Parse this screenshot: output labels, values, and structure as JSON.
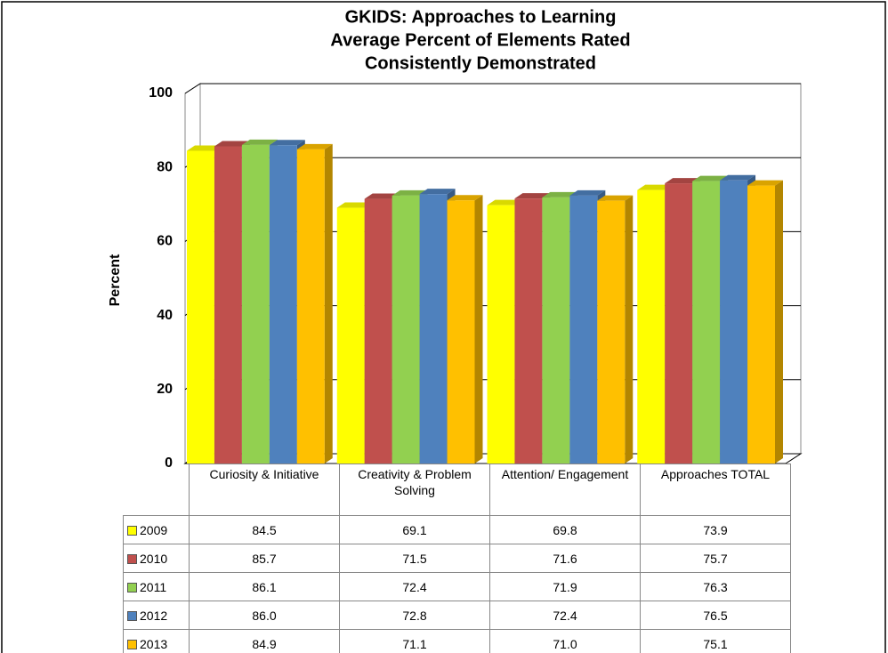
{
  "chart_data": {
    "type": "bar3d",
    "title": [
      "GKIDS:  Approaches to Learning",
      "Average Percent of Elements Rated",
      "Consistently Demonstrated"
    ],
    "y_label": "Percent",
    "categories": [
      "Curiosity & Initiative",
      "Creativity & Problem Solving",
      "Attention/ Engagement",
      "Approaches TOTAL"
    ],
    "series": [
      {
        "name": "2009",
        "color": "#FFFF00",
        "values": [
          84.5,
          69.1,
          69.8,
          73.9
        ],
        "value_labels": [
          "84.5",
          "69.1",
          "69.8",
          "73.9"
        ]
      },
      {
        "name": "2010",
        "color": "#C0504D",
        "values": [
          85.7,
          71.5,
          71.6,
          75.7
        ],
        "value_labels": [
          "85.7",
          "71.5",
          "71.6",
          "75.7"
        ]
      },
      {
        "name": "2011",
        "color": "#92D050",
        "values": [
          86.1,
          72.4,
          71.9,
          76.3
        ],
        "value_labels": [
          "86.1",
          "72.4",
          "71.9",
          "76.3"
        ]
      },
      {
        "name": "2012",
        "color": "#4F81BD",
        "values": [
          86.0,
          72.8,
          72.4,
          76.5
        ],
        "value_labels": [
          "86.0",
          "72.8",
          "72.4",
          "76.5"
        ]
      },
      {
        "name": "2013",
        "color": "#FFC000",
        "values": [
          84.9,
          71.1,
          71.0,
          75.1
        ],
        "value_labels": [
          "84.9",
          "71.1",
          "71.0",
          "75.1"
        ]
      }
    ],
    "ylim": [
      0,
      100
    ],
    "yticks": [
      0,
      20,
      40,
      60,
      80,
      100
    ],
    "grid": true
  }
}
